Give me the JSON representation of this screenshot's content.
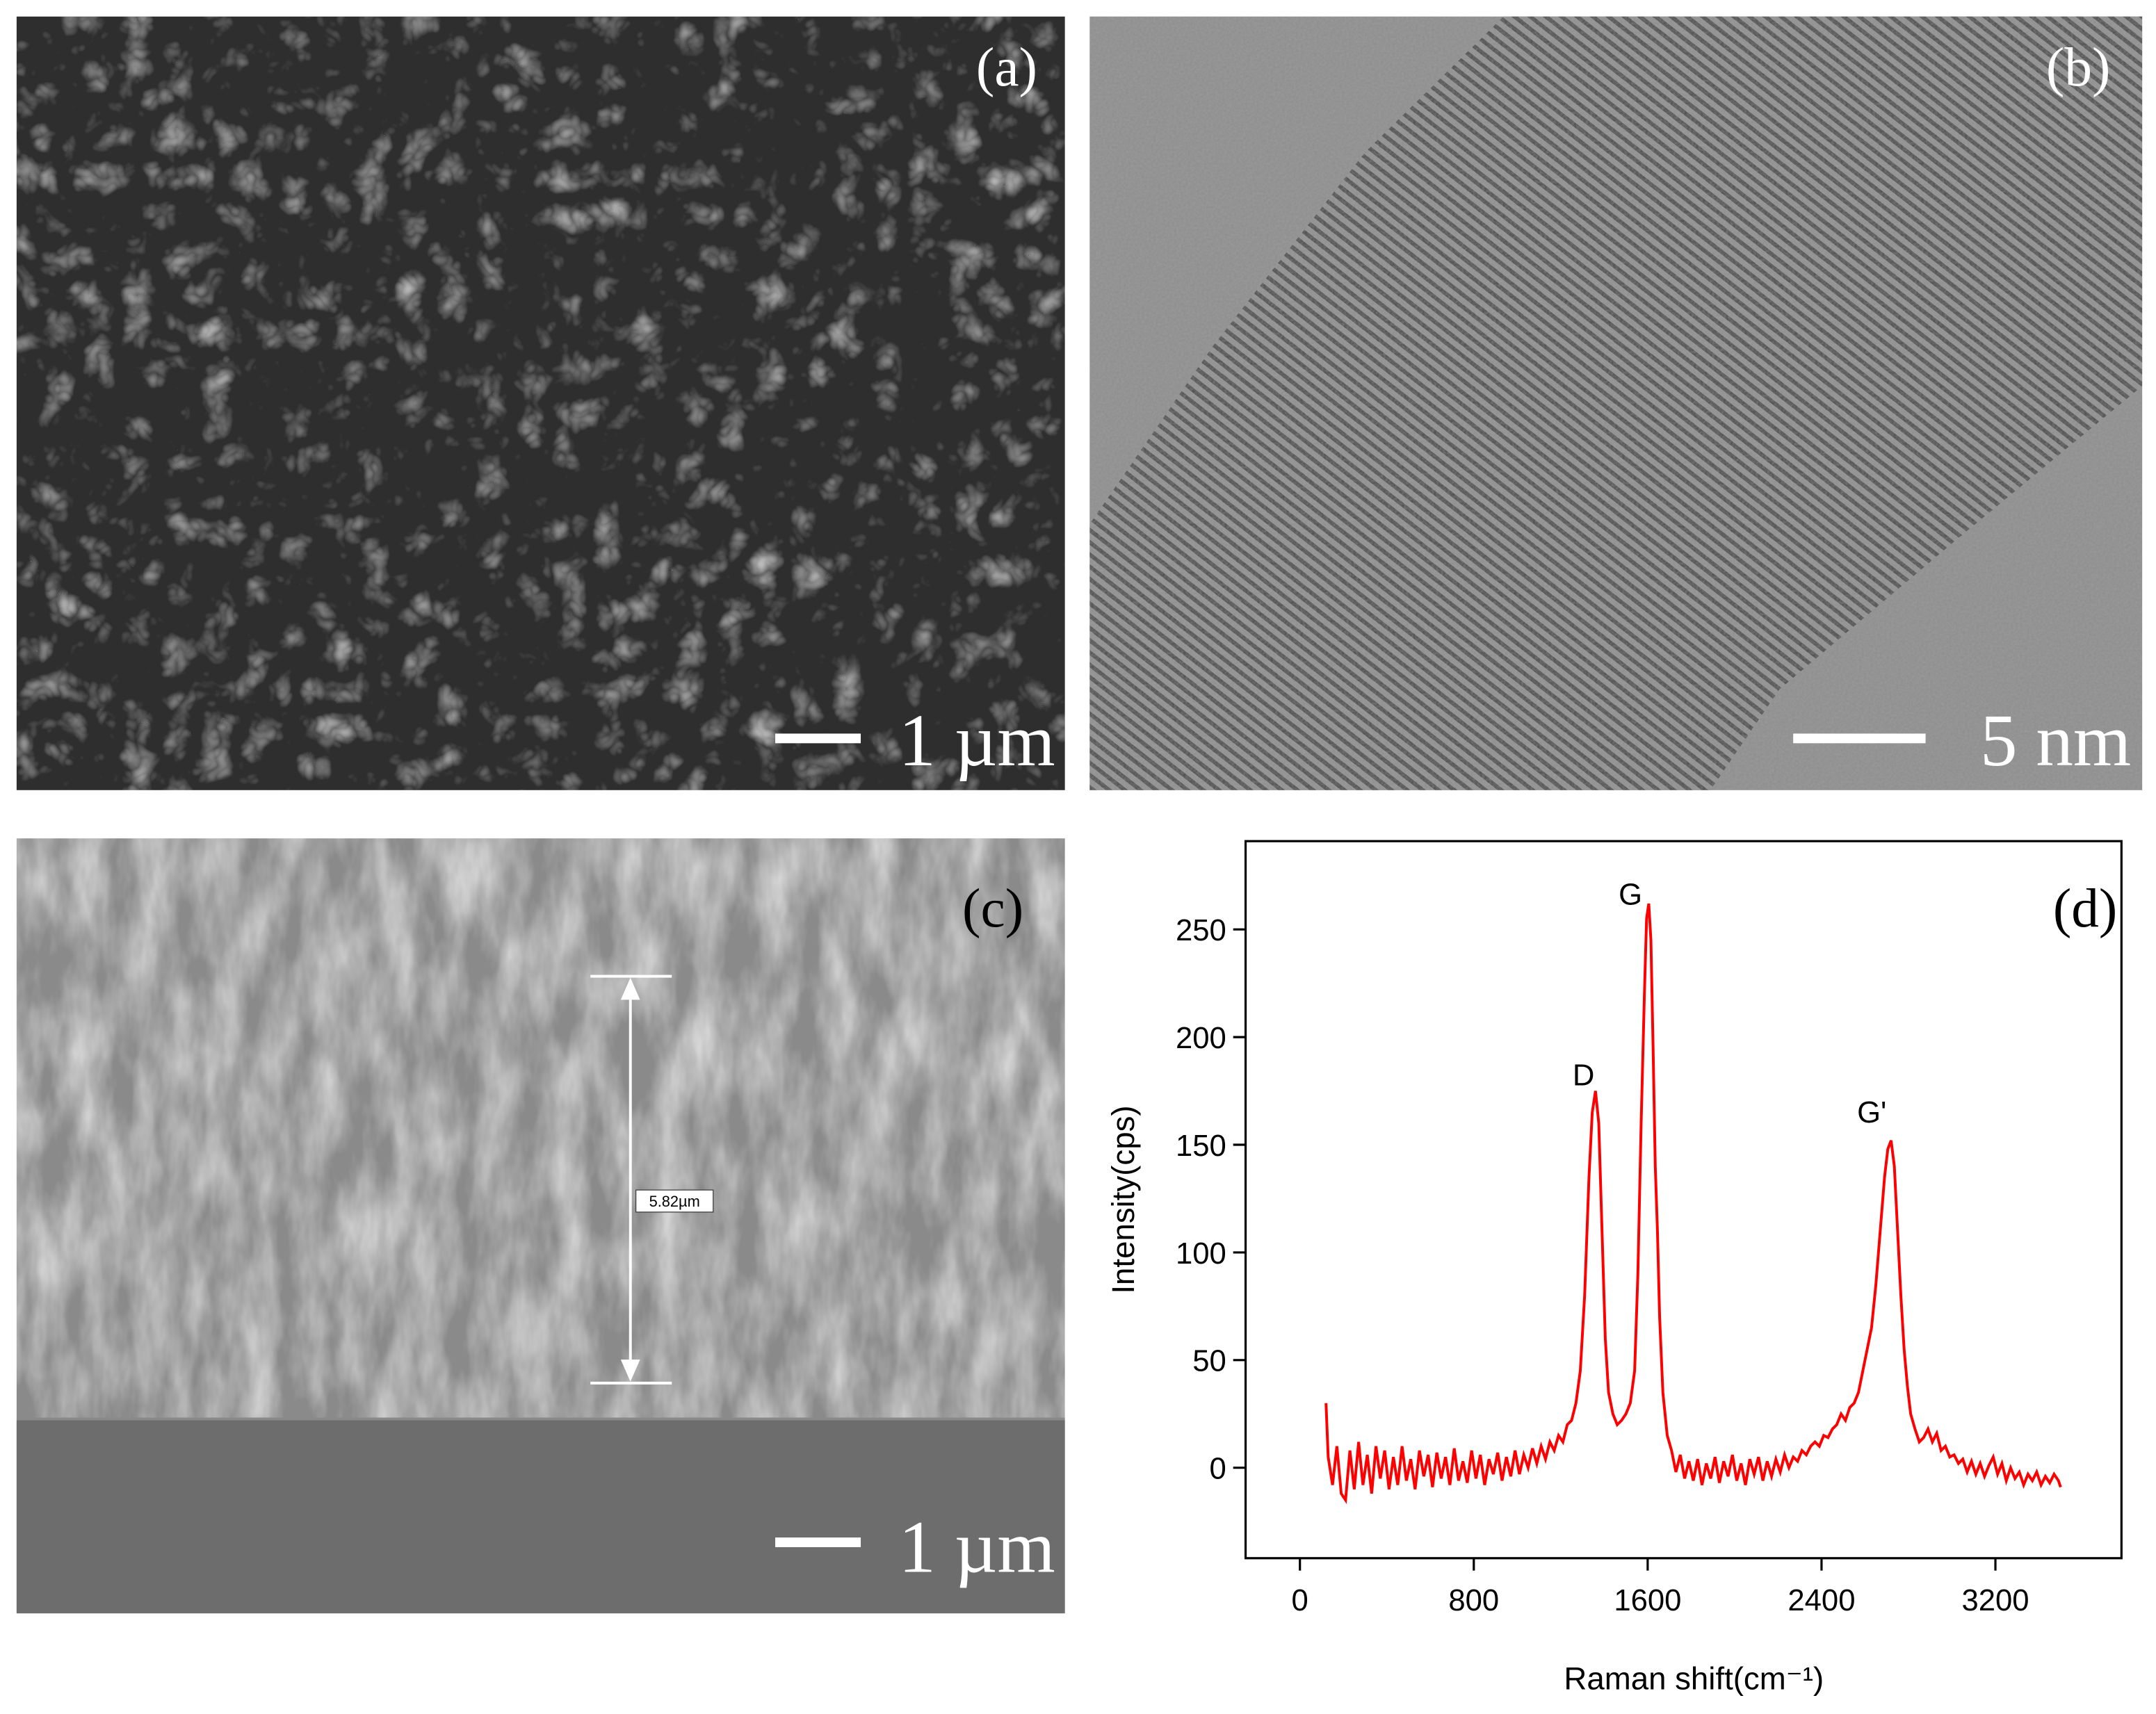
{
  "panels": {
    "a": {
      "label": "(a)",
      "scale_bar": "1 µm"
    },
    "b": {
      "label": "(b)",
      "scale_bar": "5 nm"
    },
    "c": {
      "label": "(c)",
      "scale_bar": "1 µm",
      "measurement": "5.82µm"
    }
  },
  "chart_data": {
    "type": "line",
    "panel_label": "(d)",
    "xlabel": "Raman shift(cm⁻¹)",
    "ylabel": "Intensity(cps)",
    "annotations": [
      "D",
      "G",
      "G'"
    ],
    "xlim": [
      -250,
      3780
    ],
    "ylim": [
      -42,
      291
    ],
    "xticks": [
      0,
      800,
      1600,
      2400,
      3200
    ],
    "yticks": [
      0,
      50,
      100,
      150,
      200,
      250
    ],
    "series": [
      {
        "color": "#ff0000",
        "x": [
          120,
          130,
          150,
          170,
          190,
          210,
          230,
          250,
          270,
          290,
          310,
          330,
          350,
          370,
          390,
          410,
          430,
          450,
          470,
          490,
          510,
          530,
          550,
          570,
          590,
          610,
          630,
          650,
          670,
          690,
          710,
          730,
          750,
          770,
          790,
          810,
          830,
          850,
          870,
          890,
          910,
          930,
          950,
          970,
          990,
          1010,
          1030,
          1050,
          1070,
          1090,
          1110,
          1130,
          1150,
          1170,
          1190,
          1210,
          1230,
          1250,
          1270,
          1290,
          1310,
          1330,
          1345,
          1360,
          1375,
          1390,
          1405,
          1420,
          1440,
          1460,
          1480,
          1500,
          1520,
          1540,
          1555,
          1570,
          1585,
          1595,
          1605,
          1615,
          1625,
          1635,
          1645,
          1655,
          1670,
          1690,
          1710,
          1730,
          1750,
          1770,
          1790,
          1810,
          1830,
          1850,
          1870,
          1890,
          1910,
          1930,
          1950,
          1970,
          1990,
          2010,
          2030,
          2050,
          2070,
          2090,
          2110,
          2130,
          2150,
          2170,
          2190,
          2210,
          2230,
          2250,
          2270,
          2290,
          2310,
          2330,
          2350,
          2370,
          2390,
          2410,
          2430,
          2450,
          2470,
          2490,
          2510,
          2530,
          2550,
          2570,
          2590,
          2610,
          2630,
          2650,
          2670,
          2690,
          2705,
          2720,
          2735,
          2750,
          2765,
          2780,
          2795,
          2810,
          2830,
          2850,
          2870,
          2890,
          2910,
          2930,
          2950,
          2970,
          2990,
          3010,
          3030,
          3050,
          3070,
          3090,
          3110,
          3130,
          3150,
          3170,
          3190,
          3210,
          3230,
          3250,
          3270,
          3290,
          3310,
          3330,
          3350,
          3370,
          3390,
          3410,
          3430,
          3450,
          3470,
          3490,
          3500
        ],
        "values": [
          30,
          5,
          -8,
          10,
          -12,
          -15,
          8,
          -10,
          12,
          -8,
          6,
          -12,
          10,
          -5,
          8,
          -10,
          5,
          -8,
          10,
          -6,
          4,
          -10,
          8,
          -4,
          6,
          -9,
          7,
          -5,
          5,
          -8,
          9,
          -6,
          3,
          -7,
          8,
          -5,
          6,
          -8,
          4,
          -3,
          7,
          -6,
          5,
          -4,
          8,
          -3,
          6,
          0,
          9,
          2,
          10,
          4,
          12,
          8,
          15,
          12,
          20,
          22,
          30,
          45,
          80,
          135,
          165,
          175,
          160,
          110,
          60,
          35,
          25,
          20,
          22,
          25,
          30,
          45,
          90,
          160,
          220,
          255,
          262,
          245,
          195,
          140,
          110,
          70,
          35,
          15,
          8,
          -2,
          6,
          -5,
          3,
          -6,
          4,
          -8,
          2,
          -5,
          5,
          -7,
          3,
          -4,
          6,
          -6,
          2,
          -8,
          4,
          -3,
          5,
          -6,
          3,
          -4,
          4,
          -2,
          6,
          0,
          5,
          3,
          8,
          6,
          10,
          12,
          10,
          15,
          14,
          18,
          20,
          25,
          22,
          28,
          30,
          35,
          45,
          55,
          65,
          85,
          110,
          135,
          148,
          152,
          140,
          110,
          80,
          55,
          38,
          25,
          18,
          12,
          14,
          18,
          12,
          16,
          8,
          10,
          5,
          6,
          2,
          4,
          -2,
          3,
          -3,
          2,
          -4,
          1,
          5,
          -3,
          2,
          -6,
          0,
          -5,
          -2,
          -8,
          -3,
          -6,
          -2,
          -8,
          -4,
          -7,
          -3,
          -6,
          -9
        ]
      }
    ]
  }
}
